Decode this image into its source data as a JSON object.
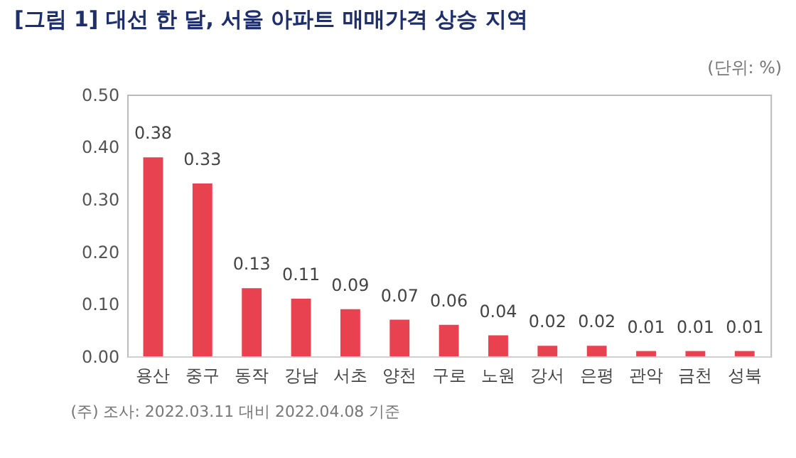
{
  "chart_data": {
    "type": "bar",
    "title": "[그림 1]  대선 한 달, 서울 아파트 매매가격 상승 지역",
    "subtitle": "(단위: %)",
    "categories": [
      "용산",
      "중구",
      "동작",
      "강남",
      "서초",
      "양천",
      "구로",
      "노원",
      "강서",
      "은평",
      "관악",
      "금천",
      "성북"
    ],
    "values": [
      0.38,
      0.33,
      0.13,
      0.11,
      0.09,
      0.07,
      0.06,
      0.04,
      0.02,
      0.02,
      0.01,
      0.01,
      0.01
    ],
    "color": "#e8414f",
    "ylim": [
      0,
      0.5
    ],
    "yticks": [
      {
        "value": 0,
        "label": "0.00"
      },
      {
        "value": 0.1,
        "label": "0.10"
      },
      {
        "value": 0.2,
        "label": "0.20"
      },
      {
        "value": 0.3,
        "label": "0.30"
      },
      {
        "value": 0.4,
        "label": "0.40"
      },
      {
        "value": 0.5,
        "label": "0.50"
      }
    ],
    "data_labels": true,
    "grid": false,
    "annotations": [
      "(주) 조사: 2022.03.11 대비 2022.04.08 기준"
    ]
  }
}
